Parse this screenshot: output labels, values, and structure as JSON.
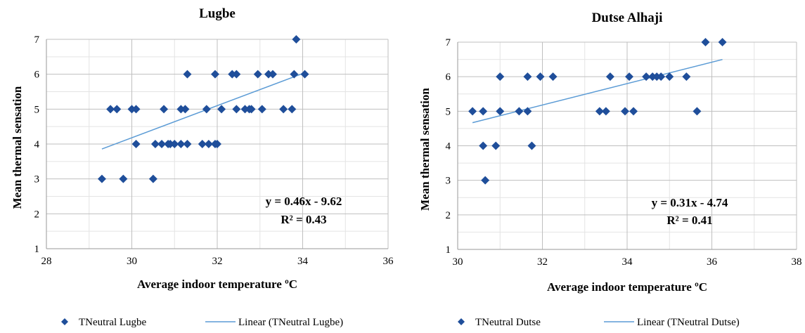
{
  "chart_data": [
    {
      "type": "scatter",
      "title": "Lugbe",
      "xlabel": "Average indoor temperature ºC",
      "ylabel": "Mean thermal sensation",
      "xlim": [
        28,
        36
      ],
      "ylim": [
        1,
        7
      ],
      "xticks": [
        28,
        30,
        32,
        34,
        36
      ],
      "yticks": [
        1,
        2,
        3,
        4,
        5,
        6,
        7
      ],
      "xtick_labels": [
        "28",
        "30",
        "32",
        "34",
        "36"
      ],
      "ytick_labels": [
        "1",
        "2",
        "3",
        "4",
        "5",
        "6",
        "7"
      ],
      "grid": true,
      "legend_placement": "bottom",
      "series": [
        {
          "name": "TNeutral Lugbe",
          "marker": "diamond",
          "color": "#1f4e9a",
          "points": [
            [
              29.3,
              3
            ],
            [
              29.8,
              3
            ],
            [
              30.5,
              3
            ],
            [
              30.1,
              4
            ],
            [
              30.55,
              4
            ],
            [
              30.7,
              4
            ],
            [
              30.85,
              4
            ],
            [
              30.9,
              4
            ],
            [
              31.0,
              4
            ],
            [
              31.15,
              4
            ],
            [
              31.3,
              4
            ],
            [
              31.65,
              4
            ],
            [
              31.8,
              4
            ],
            [
              31.95,
              4
            ],
            [
              32.0,
              4
            ],
            [
              29.5,
              5
            ],
            [
              29.65,
              5
            ],
            [
              30.0,
              5
            ],
            [
              30.1,
              5
            ],
            [
              30.75,
              5
            ],
            [
              31.15,
              5
            ],
            [
              31.25,
              5
            ],
            [
              31.75,
              5
            ],
            [
              32.1,
              5
            ],
            [
              32.45,
              5
            ],
            [
              32.65,
              5
            ],
            [
              32.75,
              5
            ],
            [
              32.8,
              5
            ],
            [
              33.05,
              5
            ],
            [
              33.55,
              5
            ],
            [
              33.75,
              5
            ],
            [
              31.3,
              6
            ],
            [
              31.95,
              6
            ],
            [
              32.35,
              6
            ],
            [
              32.45,
              6
            ],
            [
              32.95,
              6
            ],
            [
              33.2,
              6
            ],
            [
              33.3,
              6
            ],
            [
              33.8,
              6
            ],
            [
              34.05,
              6
            ],
            [
              33.85,
              7
            ]
          ]
        }
      ],
      "trendline": {
        "name": "Linear (TNeutral Lugbe)",
        "color": "#5b9bd5",
        "slope": 0.46,
        "intercept": -9.62,
        "x_range": [
          29.3,
          34.05
        ],
        "equation": "y = 0.46x - 9.62",
        "r_squared": "R² = 0.43"
      }
    },
    {
      "type": "scatter",
      "title": "Dutse Alhaji",
      "xlabel": "Average indoor temperature ºC",
      "ylabel": "Mean thermal sensation",
      "xlim": [
        30,
        38
      ],
      "ylim": [
        1,
        7
      ],
      "xticks": [
        30,
        32,
        34,
        36,
        38
      ],
      "yticks": [
        1,
        2,
        3,
        4,
        5,
        6,
        7
      ],
      "xtick_labels": [
        "30",
        "32",
        "34",
        "36",
        "38"
      ],
      "ytick_labels": [
        "1",
        "2",
        "3",
        "4",
        "5",
        "6",
        "7"
      ],
      "grid": true,
      "legend_placement": "bottom",
      "series": [
        {
          "name": "TNeutral Dutse",
          "marker": "diamond",
          "color": "#1f4e9a",
          "points": [
            [
              30.65,
              3
            ],
            [
              30.6,
              4
            ],
            [
              30.9,
              4
            ],
            [
              31.75,
              4
            ],
            [
              30.35,
              5
            ],
            [
              30.6,
              5
            ],
            [
              31.0,
              5
            ],
            [
              31.45,
              5
            ],
            [
              31.65,
              5
            ],
            [
              33.35,
              5
            ],
            [
              33.5,
              5
            ],
            [
              33.95,
              5
            ],
            [
              34.15,
              5
            ],
            [
              35.65,
              5
            ],
            [
              31.0,
              6
            ],
            [
              31.65,
              6
            ],
            [
              31.95,
              6
            ],
            [
              32.25,
              6
            ],
            [
              33.6,
              6
            ],
            [
              34.05,
              6
            ],
            [
              34.45,
              6
            ],
            [
              34.6,
              6
            ],
            [
              34.7,
              6
            ],
            [
              34.8,
              6
            ],
            [
              35.0,
              6
            ],
            [
              35.4,
              6
            ],
            [
              35.85,
              7
            ],
            [
              36.25,
              7
            ]
          ]
        }
      ],
      "trendline": {
        "name": "Linear (TNeutral Dutse)",
        "color": "#5b9bd5",
        "slope": 0.31,
        "intercept": -4.74,
        "x_range": [
          30.35,
          36.25
        ],
        "equation": "y = 0.31x - 4.74",
        "r_squared": "R² = 0.41"
      }
    }
  ]
}
